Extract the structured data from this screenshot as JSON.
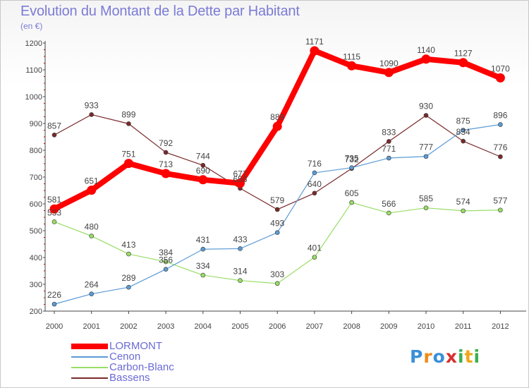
{
  "title": "Evolution du Montant de la Dette par Habitant",
  "subtitle": "(en €)",
  "logo": {
    "text": "Proxiti",
    "letters": [
      {
        "ch": "P",
        "color": "#3a8fd8"
      },
      {
        "ch": "r",
        "color": "#f08a18"
      },
      {
        "ch": "o",
        "color": "#3a8fd8"
      },
      {
        "ch": "x",
        "color": "#d83030"
      },
      {
        "ch": "i",
        "color": "#3ab04a"
      },
      {
        "ch": "t",
        "color": "#f0a818"
      },
      {
        "ch": "i",
        "color": "#3ab04a"
      }
    ]
  },
  "chart_data": {
    "type": "line",
    "x": [
      "2000",
      "2001",
      "2002",
      "2003",
      "2004",
      "2005",
      "2006",
      "2007",
      "2008",
      "2009",
      "2010",
      "2011",
      "2012"
    ],
    "ylim": [
      200,
      1200
    ],
    "yticks": [
      "200",
      "300",
      "400",
      "500",
      "600",
      "700",
      "800",
      "900",
      "1000",
      "1100",
      "1200"
    ],
    "grid": false,
    "legend_position": "bottom-left",
    "series": [
      {
        "name": "LORMONT",
        "color": "#ff0000",
        "values": [
          581,
          651,
          751,
          713,
          690,
          677,
          889,
          1171,
          1115,
          1090,
          1140,
          1127,
          1070
        ]
      },
      {
        "name": "Cenon",
        "color": "#5b9bd5",
        "values": [
          226,
          264,
          289,
          356,
          431,
          433,
          493,
          716,
          735,
          771,
          777,
          875,
          896
        ]
      },
      {
        "name": "Carbon-Blanc",
        "color": "#99dd66",
        "values": [
          533,
          480,
          413,
          384,
          334,
          314,
          303,
          401,
          605,
          566,
          585,
          574,
          577
        ]
      },
      {
        "name": "Bassens",
        "color": "#7a2a2a",
        "values": [
          857,
          933,
          899,
          792,
          744,
          658,
          579,
          640,
          732,
          833,
          930,
          834,
          776
        ]
      }
    ]
  }
}
